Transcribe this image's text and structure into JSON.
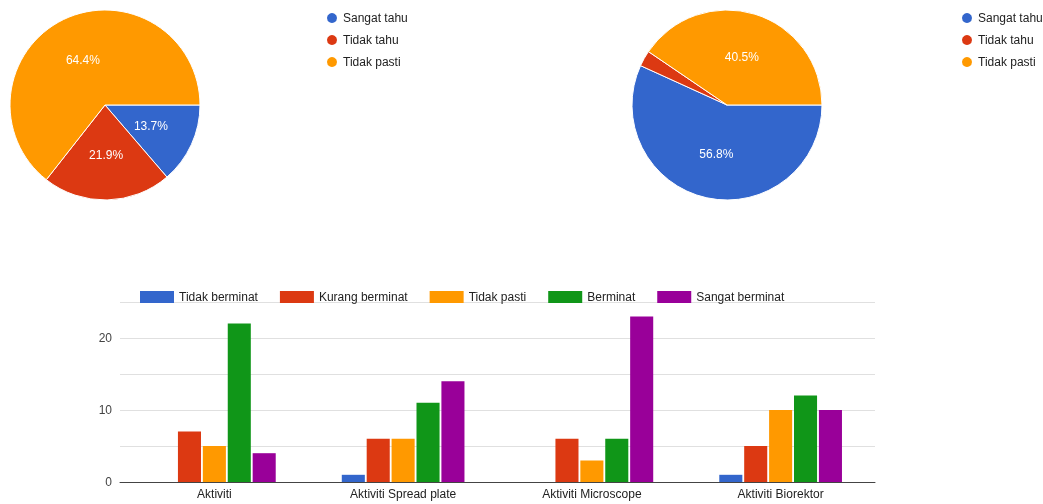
{
  "chart_data": [
    {
      "type": "pie",
      "categories": [
        "Sangat tahu",
        "Tidak tahu",
        "Tidak pasti"
      ],
      "values": [
        13.7,
        21.9,
        64.4
      ],
      "colors": [
        "#3366cc",
        "#dc3912",
        "#ff9900"
      ],
      "value_labels": [
        "13.7%",
        "21.9%",
        "64.4%"
      ],
      "legend": "top right"
    },
    {
      "type": "pie",
      "categories": [
        "Sangat tahu",
        "Tidak tahu",
        "Tidak pasti"
      ],
      "values": [
        56.8,
        2.7,
        40.5
      ],
      "colors": [
        "#3366cc",
        "#dc3912",
        "#ff9900"
      ],
      "value_labels": [
        "56.8%",
        null,
        "40.5%"
      ],
      "legend": "top right"
    },
    {
      "type": "bar",
      "categories": [
        "Aktiviti",
        "Aktiviti Spread plate",
        "Aktiviti Microscope",
        "Aktiviti Biorektor"
      ],
      "series": [
        {
          "name": "Tidak berminat",
          "color": "#3366cc",
          "values": [
            0,
            1,
            0,
            1
          ]
        },
        {
          "name": "Kurang berminat",
          "color": "#dc3912",
          "values": [
            7,
            6,
            6,
            5
          ]
        },
        {
          "name": "Tidak pasti",
          "color": "#ff9900",
          "values": [
            5,
            6,
            3,
            10
          ]
        },
        {
          "name": "Berminat",
          "color": "#109618",
          "values": [
            22,
            11,
            6,
            12
          ]
        },
        {
          "name": "Sangat berminat",
          "color": "#990099",
          "values": [
            4,
            14,
            23,
            10
          ]
        }
      ],
      "ylim": [
        0,
        25
      ],
      "yticks": [
        0,
        {
          "value": 5,
          "label": null
        },
        10,
        {
          "value": 15,
          "label": null
        },
        20,
        {
          "value": 25,
          "label": null
        }
      ],
      "grid": "y",
      "legend": "top"
    }
  ]
}
